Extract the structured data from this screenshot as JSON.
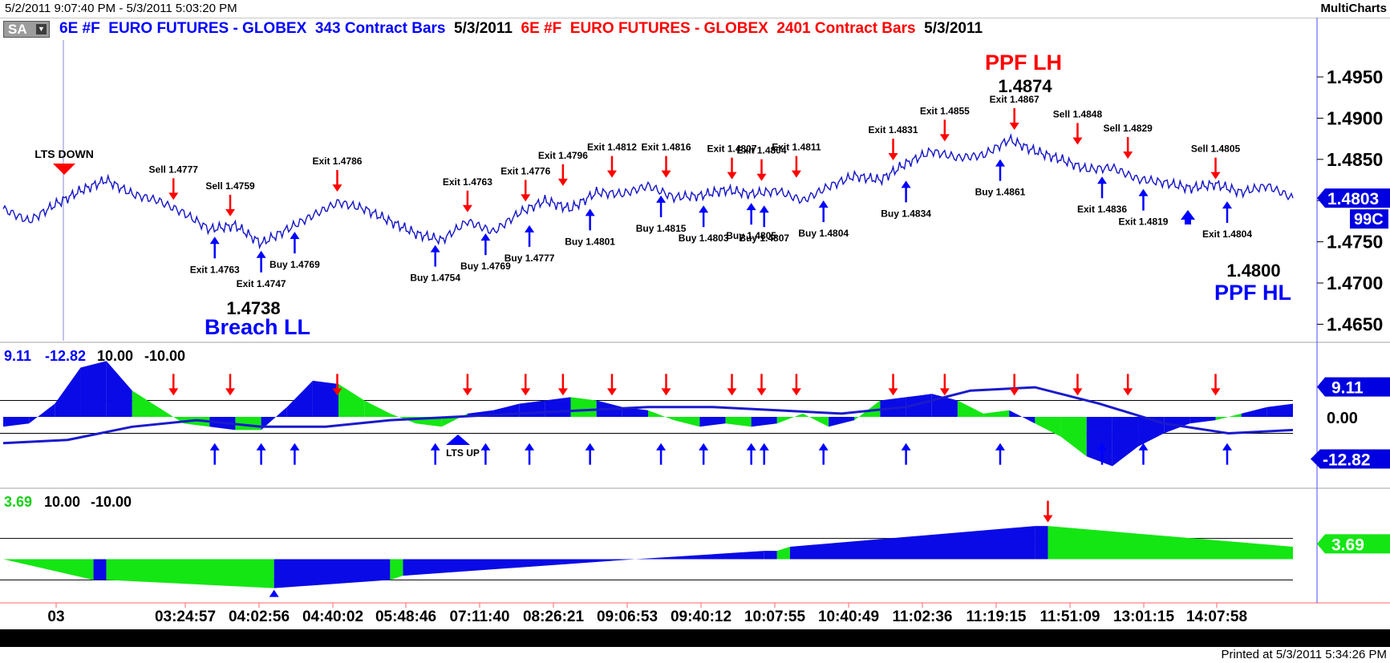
{
  "window": {
    "range_label": "5/2/2011 9:07:40 PM - 5/3/2011 5:03:20 PM",
    "app_name": "MultiCharts",
    "symbol_button": "SA",
    "printed": "Printed at 5/3/2011 5:34:26 PM"
  },
  "header": {
    "series1_symbol": "6E #F",
    "series1_name": "EURO FUTURES - GLOBEX",
    "series1_bars": "343 Contract Bars",
    "series1_date": "5/3/2011",
    "series2_symbol": "6E #F",
    "series2_name": "EURO FUTURES - GLOBEX",
    "series2_bars": "2401 Contract Bars",
    "series2_date": "5/3/2011"
  },
  "colors": {
    "up": "#0000ff",
    "down": "#ff0000",
    "histogram_blue": "#0a0ae6",
    "histogram_green": "#14e614",
    "price_line": "#1414c8"
  },
  "chart_data": [
    {
      "type": "line",
      "panel": "price",
      "ylim": [
        1.463,
        1.4985
      ],
      "yticks": [
        "1.4950",
        "1.4900",
        "1.4850",
        "1.4800",
        "1.4750",
        "1.4700",
        "1.4650"
      ],
      "last_price": "1.4803",
      "last_tag": "99C",
      "series": [
        {
          "x": [
            0,
            2,
            4,
            6,
            8,
            10,
            12,
            14,
            16,
            18,
            20,
            22,
            24,
            26,
            28,
            30,
            32,
            34,
            36,
            38,
            40,
            42,
            44,
            46,
            48,
            50,
            52,
            54,
            56,
            58,
            60,
            62,
            64,
            66,
            68,
            70,
            72,
            74,
            76,
            78,
            80,
            82,
            84,
            86,
            88,
            90,
            92,
            94,
            96,
            98,
            100
          ],
          "values": [
            1.479,
            1.4775,
            1.4795,
            1.4812,
            1.4825,
            1.4808,
            1.48,
            1.4785,
            1.4765,
            1.477,
            1.4748,
            1.4765,
            1.4782,
            1.4798,
            1.479,
            1.4775,
            1.476,
            1.4752,
            1.4775,
            1.4762,
            1.4785,
            1.48,
            1.479,
            1.481,
            1.4808,
            1.4818,
            1.4804,
            1.4806,
            1.4813,
            1.4808,
            1.4812,
            1.48,
            1.4817,
            1.483,
            1.4825,
            1.4845,
            1.486,
            1.4852,
            1.4855,
            1.4874,
            1.486,
            1.485,
            1.4838,
            1.484,
            1.4826,
            1.4822,
            1.4815,
            1.482,
            1.481,
            1.4818,
            1.4803
          ]
        }
      ],
      "annotations": {
        "lts_down": "LTS DOWN",
        "ppf_lh_title": "PPF LH",
        "ppf_lh_value": "1.4874",
        "breach_ll_value": "1.4738",
        "breach_ll_title": "Breach LL",
        "ppf_hl_value": "1.4800",
        "ppf_hl_title": "PPF HL"
      },
      "signals": [
        {
          "label": "Sell 1.4777",
          "type": "down",
          "x": 13.2,
          "price": 1.4795
        },
        {
          "label": "Sell 1.4759",
          "type": "down",
          "x": 17.6,
          "price": 1.4775
        },
        {
          "label": "Exit 1.4786",
          "type": "down",
          "x": 25.9,
          "price": 1.4805
        },
        {
          "label": "Exit 1.4763",
          "type": "down",
          "x": 36.0,
          "price": 1.478
        },
        {
          "label": "Exit 1.4776",
          "type": "down",
          "x": 40.5,
          "price": 1.4793
        },
        {
          "label": "Exit 1.4796",
          "type": "down",
          "x": 43.4,
          "price": 1.4812
        },
        {
          "label": "Exit 1.4812",
          "type": "down",
          "x": 47.2,
          "price": 1.4822
        },
        {
          "label": "Exit 1.4816",
          "type": "down",
          "x": 51.4,
          "price": 1.4822
        },
        {
          "label": "Exit 1.4807",
          "type": "down",
          "x": 56.5,
          "price": 1.482
        },
        {
          "label": "Exit 1.4804",
          "type": "down",
          "x": 58.8,
          "price": 1.4818
        },
        {
          "label": "Exit 1.4811",
          "type": "down",
          "x": 61.5,
          "price": 1.4822
        },
        {
          "label": "Exit 1.4831",
          "type": "down",
          "x": 69.0,
          "price": 1.4843
        },
        {
          "label": "Exit 1.4855",
          "type": "down",
          "x": 73.0,
          "price": 1.4866
        },
        {
          "label": "Exit 1.4867",
          "type": "down",
          "x": 78.4,
          "price": 1.488
        },
        {
          "label": "Sell 1.4848",
          "type": "down",
          "x": 83.3,
          "price": 1.4862
        },
        {
          "label": "Sell 1.4829",
          "type": "down",
          "x": 87.2,
          "price": 1.4845
        },
        {
          "label": "Sell 1.4805",
          "type": "down",
          "x": 94.0,
          "price": 1.482
        },
        {
          "label": "Exit 1.4763",
          "type": "up",
          "x": 16.4,
          "price": 1.4762
        },
        {
          "label": "Exit 1.4747",
          "type": "up",
          "x": 20.0,
          "price": 1.4745
        },
        {
          "label": "Buy 1.4769",
          "type": "up",
          "x": 22.6,
          "price": 1.4768
        },
        {
          "label": "Buy 1.4754",
          "type": "up",
          "x": 33.5,
          "price": 1.4752
        },
        {
          "label": "Buy 1.4769",
          "type": "up",
          "x": 37.4,
          "price": 1.4766
        },
        {
          "label": "Buy 1.4777",
          "type": "up",
          "x": 40.8,
          "price": 1.4776
        },
        {
          "label": "Buy 1.4801",
          "type": "up",
          "x": 45.5,
          "price": 1.4796
        },
        {
          "label": "Buy 1.4815",
          "type": "up",
          "x": 51.0,
          "price": 1.4812
        },
        {
          "label": "Buy 1.4803",
          "type": "up",
          "x": 54.3,
          "price": 1.48
        },
        {
          "label": "Buy 1.4805",
          "type": "up",
          "x": 58.0,
          "price": 1.4803
        },
        {
          "label": "Buy 1.4807",
          "type": "up",
          "x": 59.0,
          "price": 1.48
        },
        {
          "label": "Buy 1.4804",
          "type": "up",
          "x": 63.6,
          "price": 1.4806
        },
        {
          "label": "Buy 1.4834",
          "type": "up",
          "x": 70.0,
          "price": 1.483
        },
        {
          "label": "Buy 1.4861",
          "type": "up",
          "x": 77.3,
          "price": 1.4856
        },
        {
          "label": "Exit 1.4836",
          "type": "up",
          "x": 85.2,
          "price": 1.4835
        },
        {
          "label": "Exit 1.4819",
          "type": "up",
          "x": 88.4,
          "price": 1.482
        },
        {
          "label": "Exit 1.4804",
          "type": "up",
          "x": 94.9,
          "price": 1.4805
        }
      ]
    },
    {
      "type": "area",
      "panel": "oscillator1",
      "labels": {
        "v1": "9.11",
        "v2": "-12.82",
        "v3": "10.00",
        "v4": "-10.00"
      },
      "ylim": [
        -20,
        20
      ],
      "hlines": [
        5,
        -5
      ],
      "right_tags": {
        "upper": "9.11",
        "zero": "0.00",
        "lower": "-12.82"
      },
      "annotation": "LTS UP",
      "histogram": [
        {
          "x": 0,
          "v": -3,
          "c": "b"
        },
        {
          "x": 2,
          "v": -2,
          "c": "b"
        },
        {
          "x": 4,
          "v": 4,
          "c": "b"
        },
        {
          "x": 6,
          "v": 15,
          "c": "b"
        },
        {
          "x": 8,
          "v": 17,
          "c": "b"
        },
        {
          "x": 10,
          "v": 8,
          "c": "g"
        },
        {
          "x": 12,
          "v": 3,
          "c": "g"
        },
        {
          "x": 14,
          "v": -2,
          "c": "g"
        },
        {
          "x": 16,
          "v": -3,
          "c": "b"
        },
        {
          "x": 18,
          "v": -4,
          "c": "g"
        },
        {
          "x": 20,
          "v": -4,
          "c": "b"
        },
        {
          "x": 22,
          "v": 3,
          "c": "b"
        },
        {
          "x": 24,
          "v": 11,
          "c": "b"
        },
        {
          "x": 26,
          "v": 10,
          "c": "g"
        },
        {
          "x": 28,
          "v": 5,
          "c": "g"
        },
        {
          "x": 30,
          "v": 1,
          "c": "g"
        },
        {
          "x": 32,
          "v": -2,
          "c": "g"
        },
        {
          "x": 34,
          "v": -3,
          "c": "g"
        },
        {
          "x": 36,
          "v": 1,
          "c": "b"
        },
        {
          "x": 38,
          "v": 2,
          "c": "b"
        },
        {
          "x": 40,
          "v": 4,
          "c": "b"
        },
        {
          "x": 42,
          "v": 5,
          "c": "b"
        },
        {
          "x": 44,
          "v": 6,
          "c": "g"
        },
        {
          "x": 46,
          "v": 5,
          "c": "b"
        },
        {
          "x": 48,
          "v": 3,
          "c": "b"
        },
        {
          "x": 50,
          "v": 2,
          "c": "g"
        },
        {
          "x": 52,
          "v": -1,
          "c": "g"
        },
        {
          "x": 54,
          "v": -3,
          "c": "b"
        },
        {
          "x": 56,
          "v": -2,
          "c": "g"
        },
        {
          "x": 58,
          "v": -3,
          "c": "b"
        },
        {
          "x": 60,
          "v": -2,
          "c": "g"
        },
        {
          "x": 62,
          "v": 1,
          "c": "g"
        },
        {
          "x": 64,
          "v": -3,
          "c": "b"
        },
        {
          "x": 66,
          "v": -1,
          "c": "g"
        },
        {
          "x": 68,
          "v": 5,
          "c": "b"
        },
        {
          "x": 70,
          "v": 6,
          "c": "b"
        },
        {
          "x": 72,
          "v": 7,
          "c": "b"
        },
        {
          "x": 74,
          "v": 5,
          "c": "g"
        },
        {
          "x": 76,
          "v": 1,
          "c": "g"
        },
        {
          "x": 78,
          "v": 2,
          "c": "b"
        },
        {
          "x": 80,
          "v": -2,
          "c": "g"
        },
        {
          "x": 82,
          "v": -6,
          "c": "g"
        },
        {
          "x": 84,
          "v": -12,
          "c": "b"
        },
        {
          "x": 86,
          "v": -15,
          "c": "b"
        },
        {
          "x": 88,
          "v": -9,
          "c": "b"
        },
        {
          "x": 90,
          "v": -5,
          "c": "b"
        },
        {
          "x": 92,
          "v": -2,
          "c": "b"
        },
        {
          "x": 94,
          "v": -1,
          "c": "g"
        },
        {
          "x": 96,
          "v": 1,
          "c": "b"
        },
        {
          "x": 98,
          "v": 3,
          "c": "b"
        },
        {
          "x": 100,
          "v": 4,
          "c": "b"
        }
      ],
      "line": {
        "x": [
          0,
          5,
          10,
          15,
          20,
          25,
          30,
          35,
          40,
          45,
          50,
          55,
          60,
          65,
          70,
          75,
          80,
          85,
          90,
          95,
          100
        ],
        "values": [
          -8,
          -7,
          -3,
          -1,
          -3,
          -3,
          -1,
          0,
          1,
          2,
          3,
          3,
          2,
          1,
          3,
          8,
          9,
          4,
          -2,
          -5,
          -4
        ]
      }
    },
    {
      "type": "area",
      "panel": "oscillator2",
      "labels": {
        "v1": "3.69",
        "v2": "10.00",
        "v3": "-10.00"
      },
      "ylim": [
        -15,
        15
      ],
      "hlines": [
        5,
        -5
      ],
      "right_tag": "3.69",
      "histogram": [
        {
          "x": 0,
          "v": 0,
          "c": "g"
        },
        {
          "x": 7,
          "v": -5,
          "c": "b"
        },
        {
          "x": 8,
          "v": -5,
          "c": "g"
        },
        {
          "x": 21,
          "v": -7,
          "c": "b"
        },
        {
          "x": 30,
          "v": -5,
          "c": "g"
        },
        {
          "x": 31,
          "v": -4,
          "c": "b"
        },
        {
          "x": 49,
          "v": 0,
          "c": "b"
        },
        {
          "x": 59,
          "v": 2,
          "c": "b"
        },
        {
          "x": 60,
          "v": 2,
          "c": "g"
        },
        {
          "x": 61,
          "v": 3,
          "c": "b"
        },
        {
          "x": 80,
          "v": 8,
          "c": "b"
        },
        {
          "x": 81,
          "v": 8,
          "c": "g"
        },
        {
          "x": 100,
          "v": 3,
          "c": "g"
        }
      ]
    }
  ],
  "time_axis": [
    "03",
    "03:24:57",
    "04:02:56",
    "04:40:02",
    "05:48:46",
    "07:11:40",
    "08:26:21",
    "09:06:53",
    "09:40:12",
    "10:07:55",
    "10:40:49",
    "11:02:36",
    "11:19:15",
    "11:51:09",
    "13:01:15",
    "14:07:58"
  ]
}
